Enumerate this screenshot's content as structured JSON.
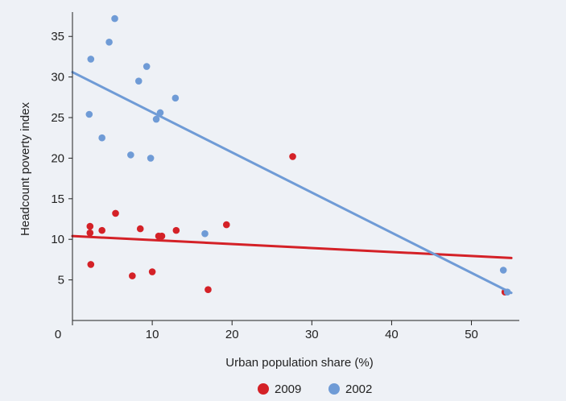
{
  "chart_data": {
    "type": "scatter",
    "title": "",
    "xlabel": "Urban population share (%)",
    "ylabel": "Headcount poverty index",
    "xlim": [
      0,
      56
    ],
    "ylim": [
      0,
      38
    ],
    "xticks": [
      0,
      10,
      20,
      30,
      40,
      50
    ],
    "yticks": [
      5,
      10,
      15,
      20,
      25,
      30,
      35
    ],
    "grid": false,
    "legend_position": "bottom-center",
    "series": [
      {
        "name": "2009",
        "color": "#d42127",
        "points": [
          [
            2.2,
            11.6
          ],
          [
            2.2,
            10.8
          ],
          [
            2.3,
            6.9
          ],
          [
            3.7,
            11.1
          ],
          [
            5.4,
            13.2
          ],
          [
            7.5,
            5.5
          ],
          [
            8.5,
            11.3
          ],
          [
            10.0,
            6.0
          ],
          [
            10.8,
            10.4
          ],
          [
            11.2,
            10.4
          ],
          [
            13.0,
            11.1
          ],
          [
            17.0,
            3.8
          ],
          [
            19.3,
            11.8
          ],
          [
            27.6,
            20.2
          ],
          [
            54.2,
            3.5
          ]
        ],
        "trend": [
          [
            0,
            10.4
          ],
          [
            55,
            7.7
          ]
        ]
      },
      {
        "name": "2002",
        "color": "#6f9bd6",
        "points": [
          [
            2.1,
            25.4
          ],
          [
            2.3,
            32.2
          ],
          [
            3.7,
            22.5
          ],
          [
            4.6,
            34.3
          ],
          [
            5.3,
            37.2
          ],
          [
            7.3,
            20.4
          ],
          [
            8.3,
            29.5
          ],
          [
            9.3,
            31.3
          ],
          [
            9.8,
            20.0
          ],
          [
            10.5,
            24.8
          ],
          [
            11.0,
            25.6
          ],
          [
            12.9,
            27.4
          ],
          [
            16.6,
            10.7
          ],
          [
            54.0,
            6.2
          ],
          [
            54.5,
            3.5
          ]
        ],
        "trend": [
          [
            0,
            30.6
          ],
          [
            55,
            3.4
          ]
        ]
      }
    ]
  }
}
